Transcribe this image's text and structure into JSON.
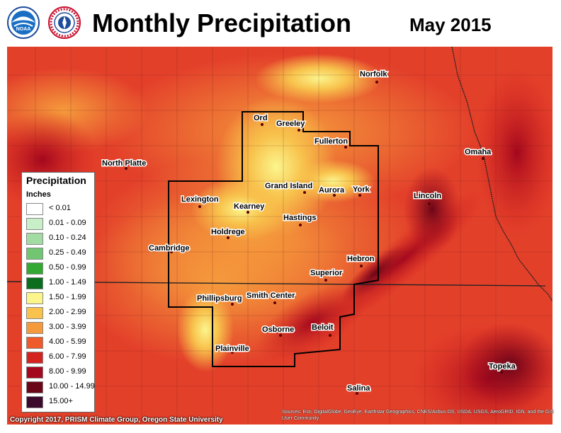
{
  "header": {
    "title": "Monthly Precipitation",
    "date": "May 2015",
    "logos": [
      {
        "name": "NOAA",
        "icon": "noaa-logo-icon",
        "text": "NOAA"
      },
      {
        "name": "National Weather Service",
        "icon": "nws-logo-icon",
        "text": "NATIONAL WEATHER SERVICE"
      }
    ]
  },
  "legend": {
    "title": "Precipitation",
    "units": "Inches",
    "items": [
      {
        "label": "< 0.01",
        "color": "#ffffff"
      },
      {
        "label": "0.01 - 0.09",
        "color": "#c8efc8"
      },
      {
        "label": "0.10 - 0.24",
        "color": "#a3dca3"
      },
      {
        "label": "0.25 - 0.49",
        "color": "#72c672"
      },
      {
        "label": "0.50 - 0.99",
        "color": "#33a833"
      },
      {
        "label": "1.00 - 1.49",
        "color": "#0a6e1e"
      },
      {
        "label": "1.50 - 1.99",
        "color": "#fbf58c"
      },
      {
        "label": "2.00 - 2.99",
        "color": "#f8c24c"
      },
      {
        "label": "3.00 - 3.99",
        "color": "#f59a3c"
      },
      {
        "label": "4.00 - 5.99",
        "color": "#ee5a2a"
      },
      {
        "label": "6.00 - 7.99",
        "color": "#d4231f"
      },
      {
        "label": "8.00 - 9.99",
        "color": "#a4081e"
      },
      {
        "label": "10.00 - 14.99",
        "color": "#6b0618"
      },
      {
        "label": "15.00+",
        "color": "#3b0a2c"
      }
    ]
  },
  "cities": [
    {
      "name": "Norfolk"
    },
    {
      "name": "Ord"
    },
    {
      "name": "Greeley"
    },
    {
      "name": "Fullerton"
    },
    {
      "name": "Omaha"
    },
    {
      "name": "North Platte"
    },
    {
      "name": "Grand Island"
    },
    {
      "name": "Aurora"
    },
    {
      "name": "York"
    },
    {
      "name": "Lincoln"
    },
    {
      "name": "Lexington"
    },
    {
      "name": "Kearney"
    },
    {
      "name": "Hastings"
    },
    {
      "name": "Holdrege"
    },
    {
      "name": "Cambridge"
    },
    {
      "name": "Hebron"
    },
    {
      "name": "Superior"
    },
    {
      "name": "Phillipsburg"
    },
    {
      "name": "Smith Center"
    },
    {
      "name": "Osborne"
    },
    {
      "name": "Beloit"
    },
    {
      "name": "Plainville"
    },
    {
      "name": "Topeka"
    },
    {
      "name": "Salina"
    }
  ],
  "footer": {
    "copyright": "Copyright 2017, PRISM Climate Group, Oregon State University",
    "sources": "Sources: Esri, DigitalGlobe, GeoEye, Earthstar Geographics, CNES/Airbus DS, USDA, USGS, AeroGRID, IGN, and the GIS User Community"
  }
}
